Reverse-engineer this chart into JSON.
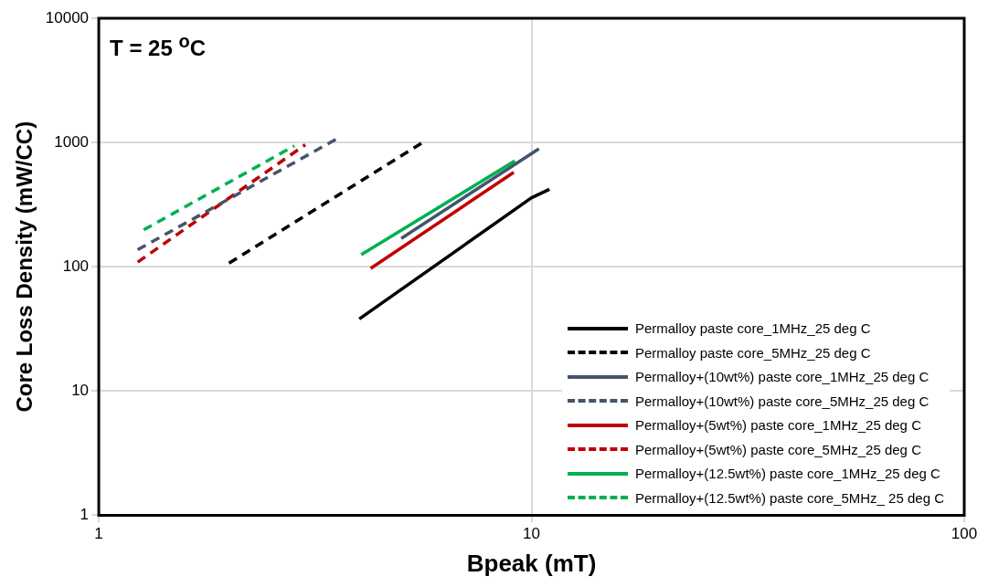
{
  "chart_data": {
    "type": "line",
    "xlabel": "Bpeak (mT)",
    "ylabel": "Core Loss Density (mW/CC)",
    "annotations": [
      "T = 25 $^{o}$C"
    ],
    "log": "xy",
    "grid": true,
    "legend": "bottom right",
    "marker": "none",
    "xlim": [
      1,
      100
    ],
    "ylim": [
      1,
      10000
    ],
    "xticks": [
      1,
      10,
      100
    ],
    "yticks": [
      1,
      10,
      100,
      1000,
      10000
    ],
    "series": [
      {
        "name": "Permalloy paste core_1MHz_25 deg C",
        "color": "#000000",
        "line_style": "solid",
        "x": [
          4,
          10,
          11
        ],
        "values": [
          38,
          359,
          420
        ]
      },
      {
        "name": "Permalloy paste core_5MHz_25 deg C",
        "color": "#000000",
        "line_style": "dashed",
        "x": [
          2,
          5.6
        ],
        "values": [
          107,
          1000
        ]
      },
      {
        "name": "Permalloy+(10wt%) paste core_1MHz_25 deg C",
        "color": "#44546a",
        "line_style": "solid",
        "x": [
          5,
          10.4
        ],
        "values": [
          169,
          890
        ]
      },
      {
        "name": "Permalloy+(10wt%) paste core_5MHz_25 deg C",
        "color": "#44546a",
        "line_style": "dashed",
        "x": [
          1.23,
          3.6
        ],
        "values": [
          137,
          1100
        ]
      },
      {
        "name": "Permalloy+(5wt%) paste core_1MHz_25 deg C",
        "color": "#c00000",
        "line_style": "solid",
        "x": [
          4.25,
          9.1
        ],
        "values": [
          97,
          575
        ]
      },
      {
        "name": "Permalloy+(5wt%) paste core_5MHz_25 deg C",
        "color": "#c00000",
        "line_style": "dashed",
        "x": [
          1.23,
          3
        ],
        "values": [
          109,
          960
        ]
      },
      {
        "name": "Permalloy+(12.5wt%) paste core_1MHz_25 deg C",
        "color": "#00b050",
        "line_style": "solid",
        "x": [
          4.04,
          9.15
        ],
        "values": [
          125,
          710
        ]
      },
      {
        "name": "Permalloy+(12.5wt%) paste core_5MHz_ 25 deg C",
        "color": "#00b050",
        "line_style": "dashed",
        "x": [
          1.27,
          2.83
        ],
        "values": [
          198,
          940
        ]
      }
    ]
  }
}
